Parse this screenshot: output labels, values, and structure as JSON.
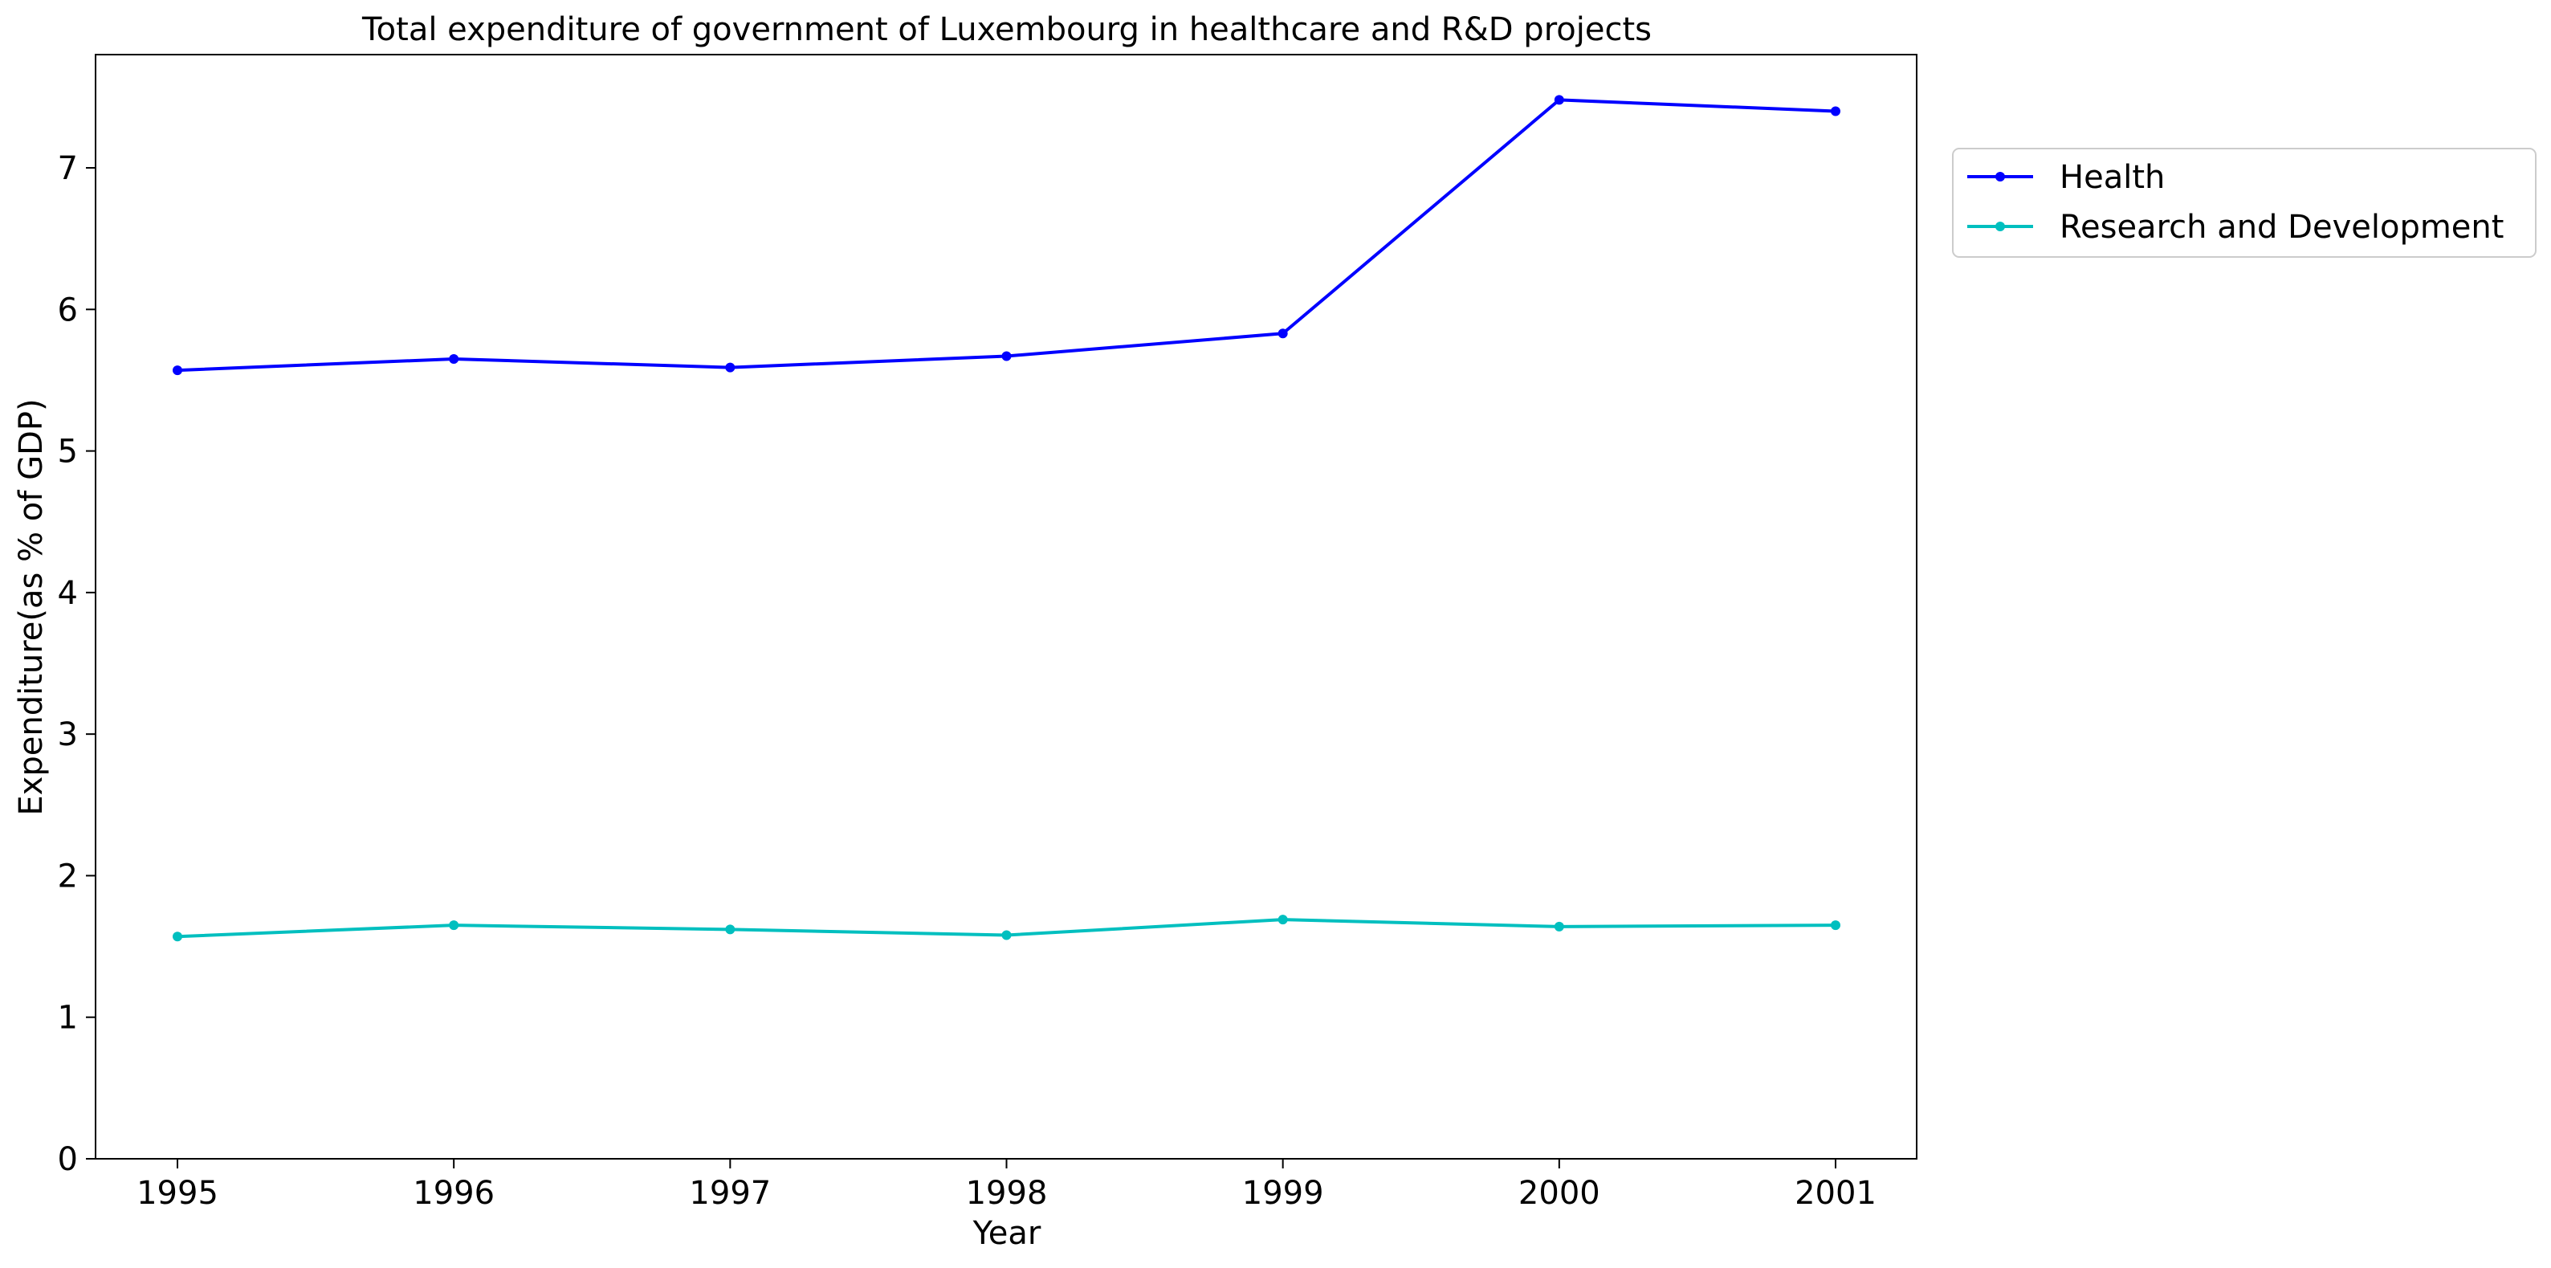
{
  "chart_data": {
    "type": "line",
    "title": "Total expenditure of government of Luxembourg in healthcare and R&D projects",
    "xlabel": "Year",
    "ylabel": "Expenditure(as % of GDP)",
    "x": [
      "1995",
      "1996",
      "1997",
      "1998",
      "1999",
      "2000",
      "2001"
    ],
    "y_ticks": [
      "0",
      "1",
      "2",
      "3",
      "4",
      "5",
      "6",
      "7"
    ],
    "ylim": [
      0,
      7.8
    ],
    "grid": false,
    "legend_position": "outside-right-top",
    "series": [
      {
        "name": "Health",
        "color": "#0000ff",
        "marker": "dot",
        "values": [
          5.57,
          5.65,
          5.59,
          5.67,
          5.83,
          7.48,
          7.4
        ]
      },
      {
        "name": "Research and Development",
        "color": "#00bfbf",
        "marker": "dot",
        "values": [
          1.57,
          1.65,
          1.62,
          1.58,
          1.69,
          1.64,
          1.65
        ]
      }
    ]
  }
}
